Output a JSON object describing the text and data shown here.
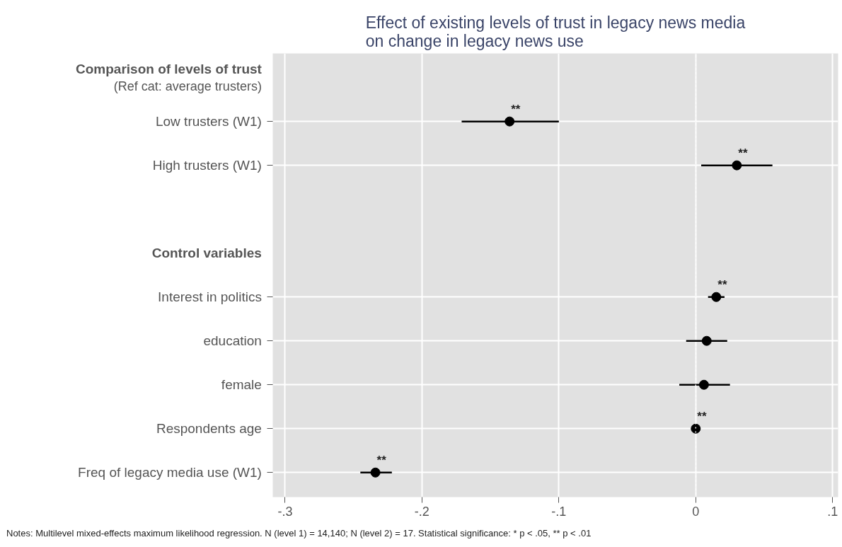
{
  "chart_data": {
    "type": "scatter",
    "orientation": "horizontal",
    "title": "Effect of existing levels of trust in legacy news media\non change in legacy news use",
    "categories": [
      "Comparison of levels of trust\n(Ref cat: average trusters)",
      "Low trusters (W1)",
      "High trusters (W1)",
      null,
      "Control variables",
      "Interest in politics",
      "education",
      "female",
      "Respondents age",
      "Freq of legacy media use (W1)"
    ],
    "series": [
      {
        "color": "#000000",
        "values": [
          null,
          -0.136,
          0.03,
          null,
          null,
          0.015,
          0.008,
          0.006,
          0.0,
          -0.234
        ],
        "errors": [
          null,
          [
            -0.171,
            -0.1
          ],
          [
            0.004,
            0.056
          ],
          null,
          null,
          [
            0.009,
            0.021
          ],
          [
            -0.007,
            0.023
          ],
          [
            -0.012,
            0.025
          ],
          null,
          [
            -0.245,
            -0.222
          ]
        ],
        "value_labels": [
          null,
          "**",
          "**",
          null,
          null,
          "**",
          null,
          null,
          "**",
          "**"
        ]
      }
    ],
    "xlim": [
      -0.309,
      0.104
    ],
    "xticks": [
      {
        "value": -0.3,
        "label": "-.3"
      },
      {
        "value": -0.2,
        "label": "-.2"
      },
      {
        "value": -0.1,
        "label": "-.1"
      },
      {
        "value": 0,
        "label": "0"
      },
      {
        "value": 0.1,
        "label": ".1"
      }
    ],
    "ref_lines": [
      {
        "axis": "x",
        "value": 0,
        "label": null,
        "color": "#f4f4f4",
        "line_style": "dotted"
      }
    ],
    "annotations": [
      "Notes: Multilevel mixed-effects maximum likelihood regression. N (level 1) = 14,140; N (level 2) = 17. Statistical significance: * p < .05, ** p < .01"
    ],
    "grid": true,
    "marker": "circle"
  }
}
